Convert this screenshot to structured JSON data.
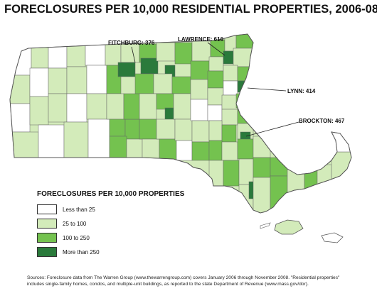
{
  "title": "FORECLOSURES PER 10,000 RESIDENTIAL PROPERTIES, 2006-08",
  "callouts": [
    {
      "id": "fitchburg",
      "label": "FITCHBURG: 376"
    },
    {
      "id": "lawrence",
      "label": "LAWRENCE: 616"
    },
    {
      "id": "lynn",
      "label": "LYNN: 414"
    },
    {
      "id": "brockton",
      "label": "BROCKTON: 467"
    }
  ],
  "legend": {
    "title": "FORECLOSURES PER 10,000 PROPERTIES",
    "items": [
      {
        "label": "Less than 25",
        "color": "#ffffff"
      },
      {
        "label": "25 to 100",
        "color": "#d3ebba"
      },
      {
        "label": "100 to 250",
        "color": "#74c24f"
      },
      {
        "label": "More than 250",
        "color": "#2a7a3b"
      }
    ]
  },
  "sources": "Sources: Foreclosure data from The Warren Group (www.thewarrengroup.com) covers January 2006 through November 2008. \"Residential properties\" includes single-family homes, condos, and multiple-unit buildings, as reported to the state Department of Revenue (www.mass.gov/dor).",
  "colors": {
    "border": "#555555",
    "text": "#111111"
  }
}
